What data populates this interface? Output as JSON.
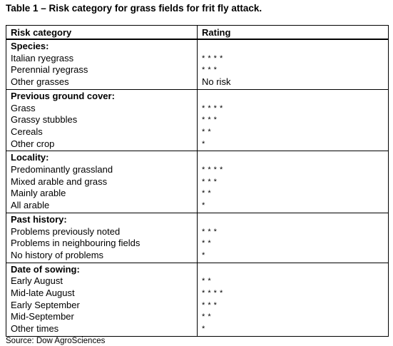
{
  "caption": "Table 1 – Risk category for grass fields for frit fly attack.",
  "headers": {
    "category": "Risk category",
    "rating": "Rating"
  },
  "groups": [
    {
      "title": "Species:",
      "rows": [
        {
          "label": "Italian ryegrass",
          "rating": "* * * *"
        },
        {
          "label": "Perennial ryegrass",
          "rating": "* * *"
        },
        {
          "label": "Other grasses",
          "rating": "No risk"
        }
      ]
    },
    {
      "title": "Previous ground cover:",
      "rows": [
        {
          "label": "Grass",
          "rating": "* * * *"
        },
        {
          "label": "Grassy stubbles",
          "rating": "* * *"
        },
        {
          "label": "Cereals",
          "rating": "* *"
        },
        {
          "label": "Other crop",
          "rating": "*"
        }
      ]
    },
    {
      "title": "Locality:",
      "rows": [
        {
          "label": "Predominantly grassland",
          "rating": "* * * *"
        },
        {
          "label": "Mixed arable and grass",
          "rating": "* * *"
        },
        {
          "label": "Mainly arable",
          "rating": "* *"
        },
        {
          "label": "All arable",
          "rating": "*"
        }
      ]
    },
    {
      "title": "Past history:",
      "rows": [
        {
          "label": "Problems previously noted",
          "rating": "* * *"
        },
        {
          "label": "Problems in neighbouring fields",
          "rating": "* *"
        },
        {
          "label": "No history of problems",
          "rating": "*"
        }
      ]
    },
    {
      "title": "Date of sowing:",
      "rows": [
        {
          "label": "Early August",
          "rating": "* *"
        },
        {
          "label": "Mid-late August",
          "rating": "* * * *"
        },
        {
          "label": "Early September",
          "rating": "* * *"
        },
        {
          "label": "Mid-September",
          "rating": "* *"
        },
        {
          "label": "Other times",
          "rating": "*"
        }
      ]
    }
  ],
  "source": "Source: Dow AgroSciences"
}
